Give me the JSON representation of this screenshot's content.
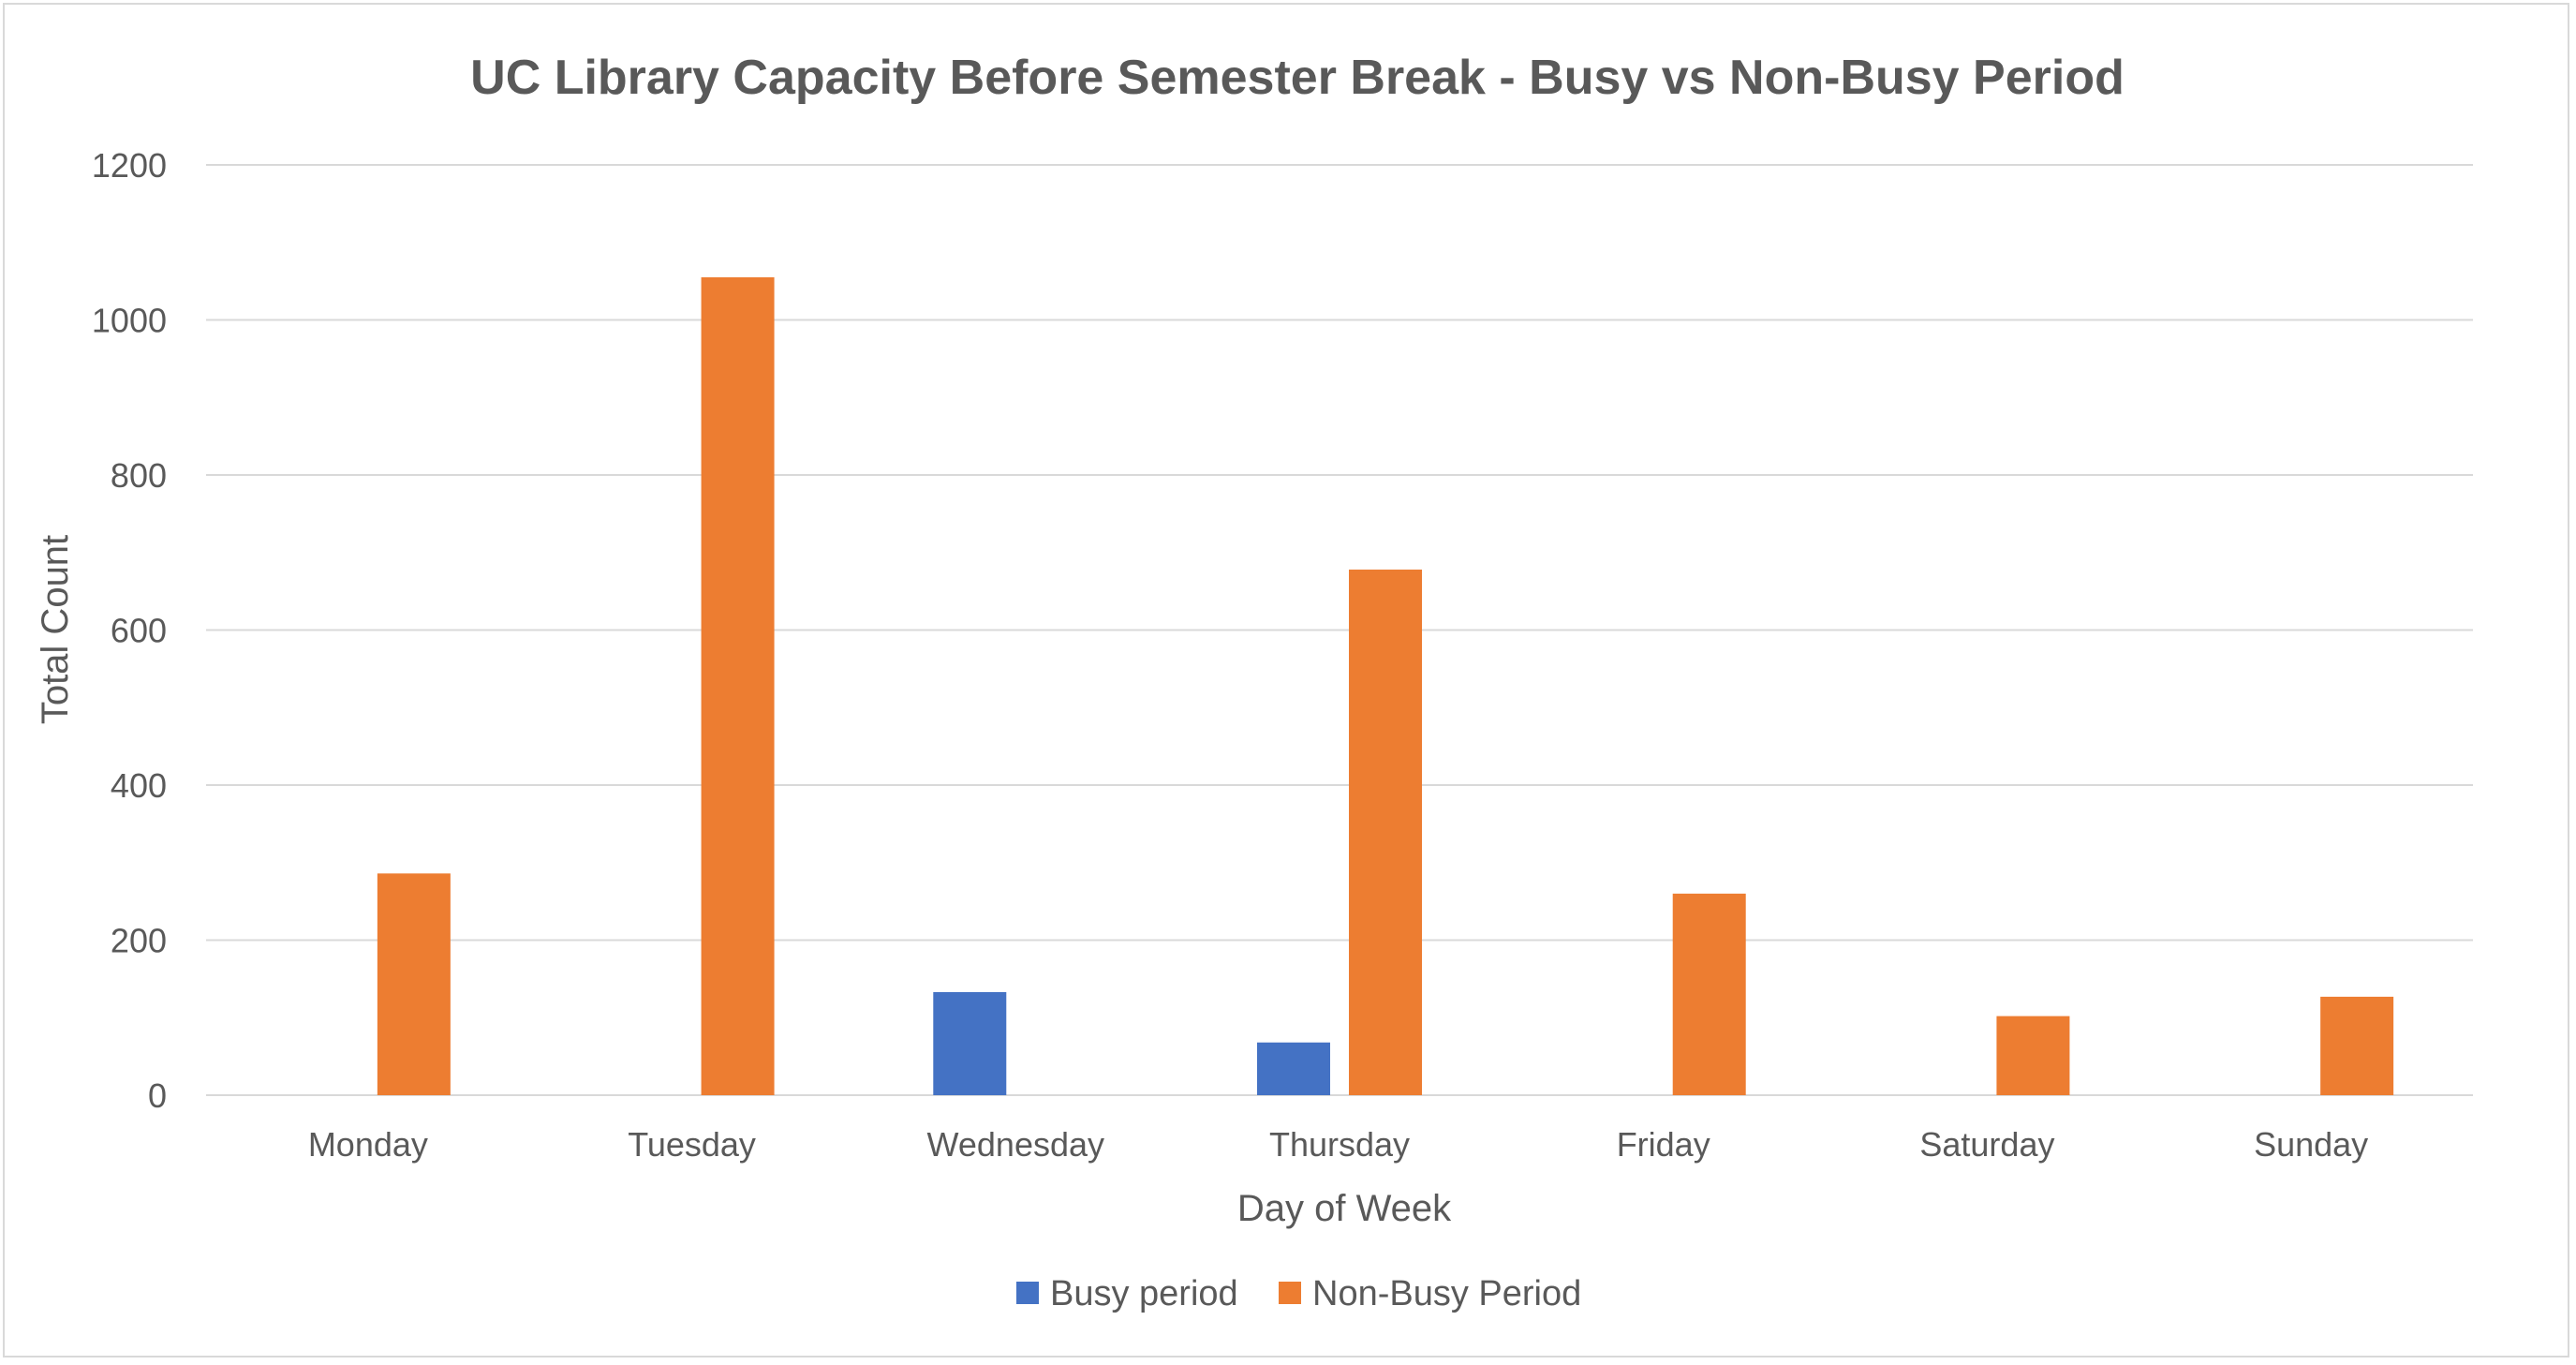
{
  "chart_data": {
    "type": "bar",
    "title": "UC Library Capacity Before Semester Break - Busy vs Non-Busy Period",
    "xlabel": "Day of Week",
    "ylabel": "Total Count",
    "ylim": [
      0,
      1200
    ],
    "yticks": [
      0,
      200,
      400,
      600,
      800,
      1000,
      1200
    ],
    "categories": [
      "Monday",
      "Tuesday",
      "Wednesday",
      "Thursday",
      "Friday",
      "Saturday",
      "Sunday"
    ],
    "series": [
      {
        "name": "Busy period",
        "color": "#4472C4",
        "values": [
          0,
          0,
          133,
          68,
          0,
          0,
          0
        ]
      },
      {
        "name": "Non-Busy Period",
        "color": "#ED7D31",
        "values": [
          286,
          1055,
          0,
          678,
          260,
          102,
          127
        ]
      }
    ],
    "grid": true,
    "legend_position": "bottom"
  }
}
